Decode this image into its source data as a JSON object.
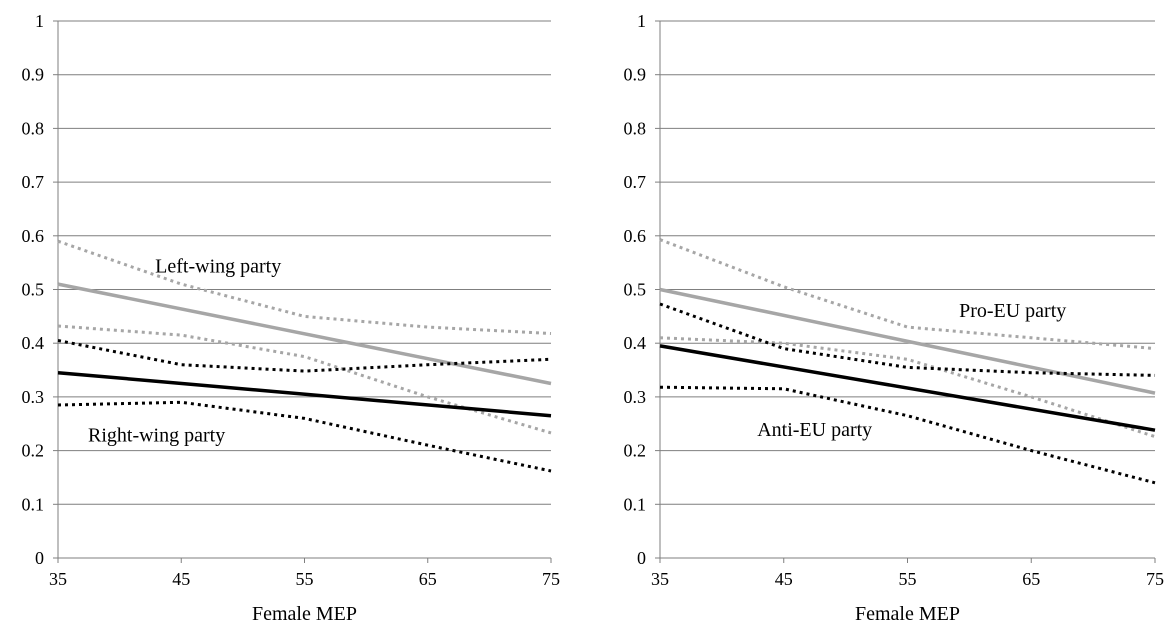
{
  "chart_data": [
    {
      "type": "line",
      "title": "",
      "xlabel": "Female MEP",
      "ylabel": "",
      "x_ticks": [
        "35",
        "45",
        "55",
        "65",
        "75"
      ],
      "y_ticks": [
        "0",
        "0.1",
        "0.2",
        "0.3",
        "0.4",
        "0.5",
        "0.6",
        "0.7",
        "0.8",
        "0.9",
        "1"
      ],
      "xlim": [
        35,
        75
      ],
      "ylim": [
        0,
        1
      ],
      "grid": "horizontal",
      "legend": "none",
      "colors": {
        "gray": "#a6a6a6",
        "black": "#000000",
        "grid": "#7f7f7f"
      },
      "annotations": [
        {
          "text": "Left-wing party",
          "x": 48,
          "y": 0.545
        },
        {
          "text": "Right-wing party",
          "x": 43,
          "y": 0.23
        }
      ],
      "series": [
        {
          "color": "gray",
          "style": "solid",
          "x": [
            35,
            75
          ],
          "y": [
            0.51,
            0.325
          ]
        },
        {
          "color": "gray",
          "style": "dotted",
          "x": [
            35,
            45,
            55,
            65,
            75
          ],
          "y": [
            0.59,
            0.51,
            0.45,
            0.43,
            0.418
          ]
        },
        {
          "color": "gray",
          "style": "dotted",
          "x": [
            35,
            45,
            55,
            65,
            75
          ],
          "y": [
            0.432,
            0.415,
            0.375,
            0.3,
            0.233
          ]
        },
        {
          "color": "black",
          "style": "solid",
          "x": [
            35,
            75
          ],
          "y": [
            0.345,
            0.265
          ]
        },
        {
          "color": "black",
          "style": "dotted",
          "x": [
            35,
            45,
            55,
            65,
            75
          ],
          "y": [
            0.405,
            0.36,
            0.348,
            0.36,
            0.37
          ]
        },
        {
          "color": "black",
          "style": "dotted",
          "x": [
            35,
            45,
            55,
            65,
            75
          ],
          "y": [
            0.285,
            0.29,
            0.26,
            0.21,
            0.162
          ]
        }
      ]
    },
    {
      "type": "line",
      "title": "",
      "xlabel": "Female MEP",
      "ylabel": "",
      "x_ticks": [
        "35",
        "45",
        "55",
        "65",
        "75"
      ],
      "y_ticks": [
        "0",
        "0.1",
        "0.2",
        "0.3",
        "0.4",
        "0.5",
        "0.6",
        "0.7",
        "0.8",
        "0.9",
        "1"
      ],
      "xlim": [
        35,
        75
      ],
      "ylim": [
        0,
        1
      ],
      "grid": "horizontal",
      "legend": "none",
      "colors": {
        "gray": "#a6a6a6",
        "black": "#000000",
        "grid": "#7f7f7f"
      },
      "annotations": [
        {
          "text": "Pro-EU party",
          "x": 63.5,
          "y": 0.462
        },
        {
          "text": "Anti-EU party",
          "x": 47.5,
          "y": 0.24
        }
      ],
      "series": [
        {
          "color": "gray",
          "style": "solid",
          "x": [
            35,
            75
          ],
          "y": [
            0.5,
            0.307
          ]
        },
        {
          "color": "gray",
          "style": "dotted",
          "x": [
            35,
            45,
            55,
            65,
            75
          ],
          "y": [
            0.593,
            0.505,
            0.43,
            0.41,
            0.39
          ]
        },
        {
          "color": "gray",
          "style": "dotted",
          "x": [
            35,
            45,
            55,
            65,
            75
          ],
          "y": [
            0.41,
            0.4,
            0.37,
            0.3,
            0.226
          ]
        },
        {
          "color": "black",
          "style": "solid",
          "x": [
            35,
            75
          ],
          "y": [
            0.395,
            0.238
          ]
        },
        {
          "color": "black",
          "style": "dotted",
          "x": [
            35,
            45,
            55,
            65,
            75
          ],
          "y": [
            0.473,
            0.39,
            0.355,
            0.345,
            0.34
          ]
        },
        {
          "color": "black",
          "style": "dotted",
          "x": [
            35,
            45,
            55,
            65,
            75
          ],
          "y": [
            0.318,
            0.315,
            0.265,
            0.2,
            0.14
          ]
        }
      ]
    }
  ]
}
